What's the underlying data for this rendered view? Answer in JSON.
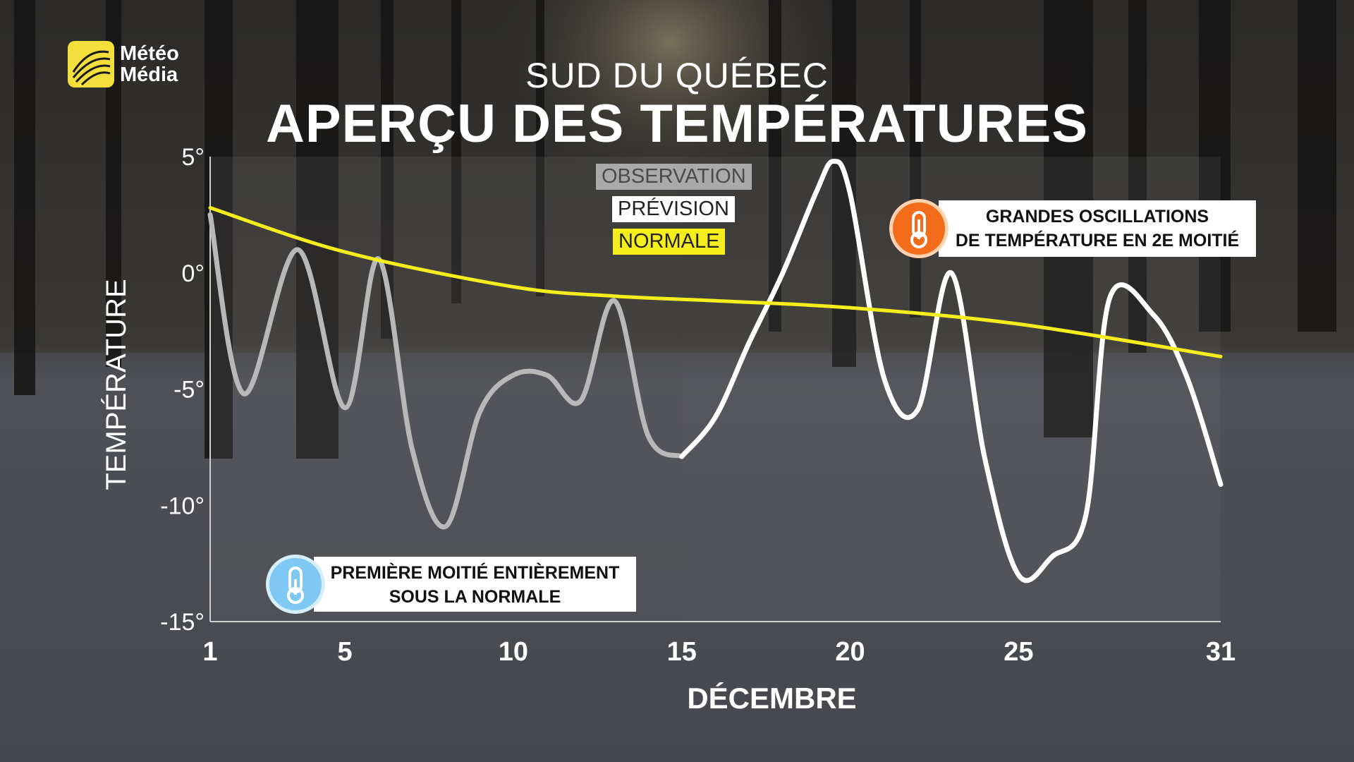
{
  "brand": {
    "name_line1": "Météo",
    "name_line2": "Média",
    "logo_color": "#f3df3b"
  },
  "header": {
    "region": "SUD DU QUÉBEC",
    "title": "APERÇU DES TEMPÉRATURES"
  },
  "legend": {
    "observation": "OBSERVATION",
    "forecast": "PRÉVISION",
    "normal": "NORMALE"
  },
  "colors": {
    "observation": "#b8b8b8",
    "forecast": "#ffffff",
    "normal": "#f6ee1c",
    "cold_badge": "#7fc8f4",
    "hot_badge": "#f26c1a"
  },
  "callouts": {
    "first_half_line1": "PREMIÈRE MOITIÉ ENTIÈREMENT",
    "first_half_line2": "SOUS LA NORMALE",
    "second_half_line1": "GRANDES OSCILLATIONS",
    "second_half_line2": "DE TEMPÉRATURE EN 2E MOITIÉ",
    "first_half_icon": "thermometer-cold-icon",
    "second_half_icon": "thermometer-hot-icon"
  },
  "chart_data": {
    "type": "line",
    "title": "APERÇU DES TEMPÉRATURES",
    "subtitle": "SUD DU QUÉBEC",
    "xlabel": "DÉCEMBRE",
    "ylabel": "TEMPÉRATURE",
    "xlim": [
      1,
      31
    ],
    "ylim": [
      -15,
      5
    ],
    "x_ticks": [
      1,
      5,
      10,
      15,
      20,
      25,
      31
    ],
    "y_ticks": [
      5,
      0,
      -5,
      -10,
      -15
    ],
    "y_tick_labels": [
      "5°",
      "0°",
      "-5°",
      "-10°",
      "-15°"
    ],
    "legend_position": "top-center",
    "grid": false,
    "series": [
      {
        "name": "OBSERVATION",
        "x": [
          1,
          2,
          3.6,
          5,
          6,
          7,
          8,
          9,
          10,
          11,
          12,
          13,
          14,
          15
        ],
        "y": [
          2.5,
          -5.2,
          1,
          -5.8,
          0.6,
          -7.6,
          -10.9,
          -6,
          -4.4,
          -4.4,
          -5.5,
          -1.2,
          -7,
          -7.9
        ]
      },
      {
        "name": "PRÉVISION",
        "x": [
          15,
          16,
          17,
          18,
          19,
          19.5,
          20,
          21,
          22,
          23,
          24,
          25,
          26,
          27,
          27.7,
          29,
          30,
          31
        ],
        "y": [
          -7.9,
          -6.2,
          -3,
          0,
          3.5,
          4.8,
          3.4,
          -4.5,
          -5.9,
          0,
          -8,
          -13,
          -12.2,
          -10.4,
          -1.1,
          -1.8,
          -4.5,
          -9.1
        ]
      },
      {
        "name": "NORMALE",
        "x": [
          1,
          5,
          10,
          13,
          16,
          20,
          25,
          31
        ],
        "y": [
          2.8,
          0.9,
          -0.6,
          -1,
          -1.2,
          -1.5,
          -2.2,
          -3.6
        ]
      }
    ]
  }
}
